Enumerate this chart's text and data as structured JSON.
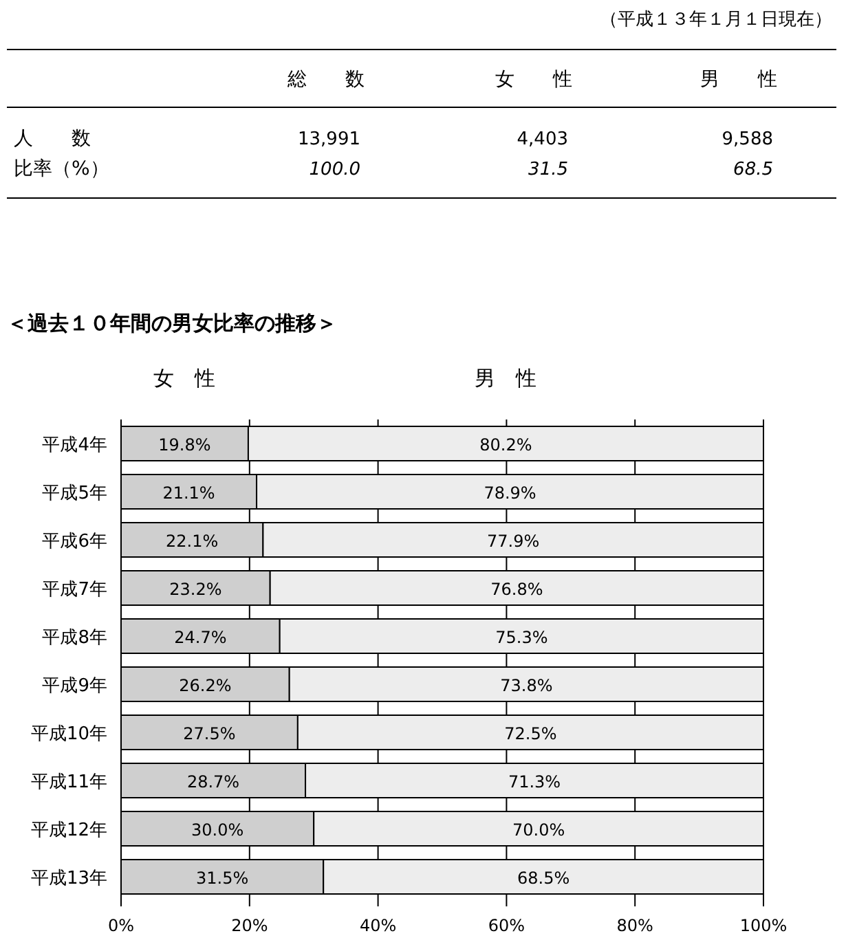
{
  "chart_data": [
    {
      "type": "other",
      "annotations": [
        "（平成１３年１月１日現在）"
      ],
      "categories": [
        "総　　数",
        "女　　性",
        "男　　性"
      ],
      "y_categories": [
        "人　　数",
        "比率（%）"
      ],
      "cell_labels": [
        [
          "13,991",
          "4,403",
          "9,588"
        ],
        [
          "100.0",
          "31.5",
          "68.5"
        ]
      ]
    },
    {
      "type": "bar",
      "orientation": "horizontal",
      "stacked": true,
      "title": "＜過去１０年間の男女比率の推移＞",
      "categories": [
        "平成4年",
        "平成5年",
        "平成6年",
        "平成7年",
        "平成8年",
        "平成9年",
        "平成10年",
        "平成11年",
        "平成12年",
        "平成13年"
      ],
      "series": [
        {
          "name": "女　性",
          "color": "#cfcfcf",
          "values": [
            19.8,
            21.1,
            22.1,
            23.2,
            24.7,
            26.2,
            27.5,
            28.7,
            30.0,
            31.5
          ],
          "value_labels": [
            "19.8%",
            "21.1%",
            "22.1%",
            "23.2%",
            "24.7%",
            "26.2%",
            "27.5%",
            "28.7%",
            "30.0%",
            "31.5%"
          ]
        },
        {
          "name": "男　性",
          "color": "#ededed",
          "values": [
            80.2,
            78.9,
            77.9,
            76.8,
            75.3,
            73.8,
            72.5,
            71.3,
            70.0,
            68.5
          ],
          "value_labels": [
            "80.2%",
            "78.9%",
            "77.9%",
            "76.8%",
            "75.3%",
            "73.8%",
            "72.5%",
            "71.3%",
            "70.0%",
            "68.5%"
          ]
        }
      ],
      "xlim": [
        0,
        100
      ],
      "xticks": [
        {
          "value": 0,
          "label": "0%"
        },
        {
          "value": 20,
          "label": "20%"
        },
        {
          "value": 40,
          "label": "40%"
        },
        {
          "value": 60,
          "label": "60%"
        },
        {
          "value": 80,
          "label": "80%"
        },
        {
          "value": 100,
          "label": "100%"
        }
      ],
      "grid": "x"
    }
  ]
}
